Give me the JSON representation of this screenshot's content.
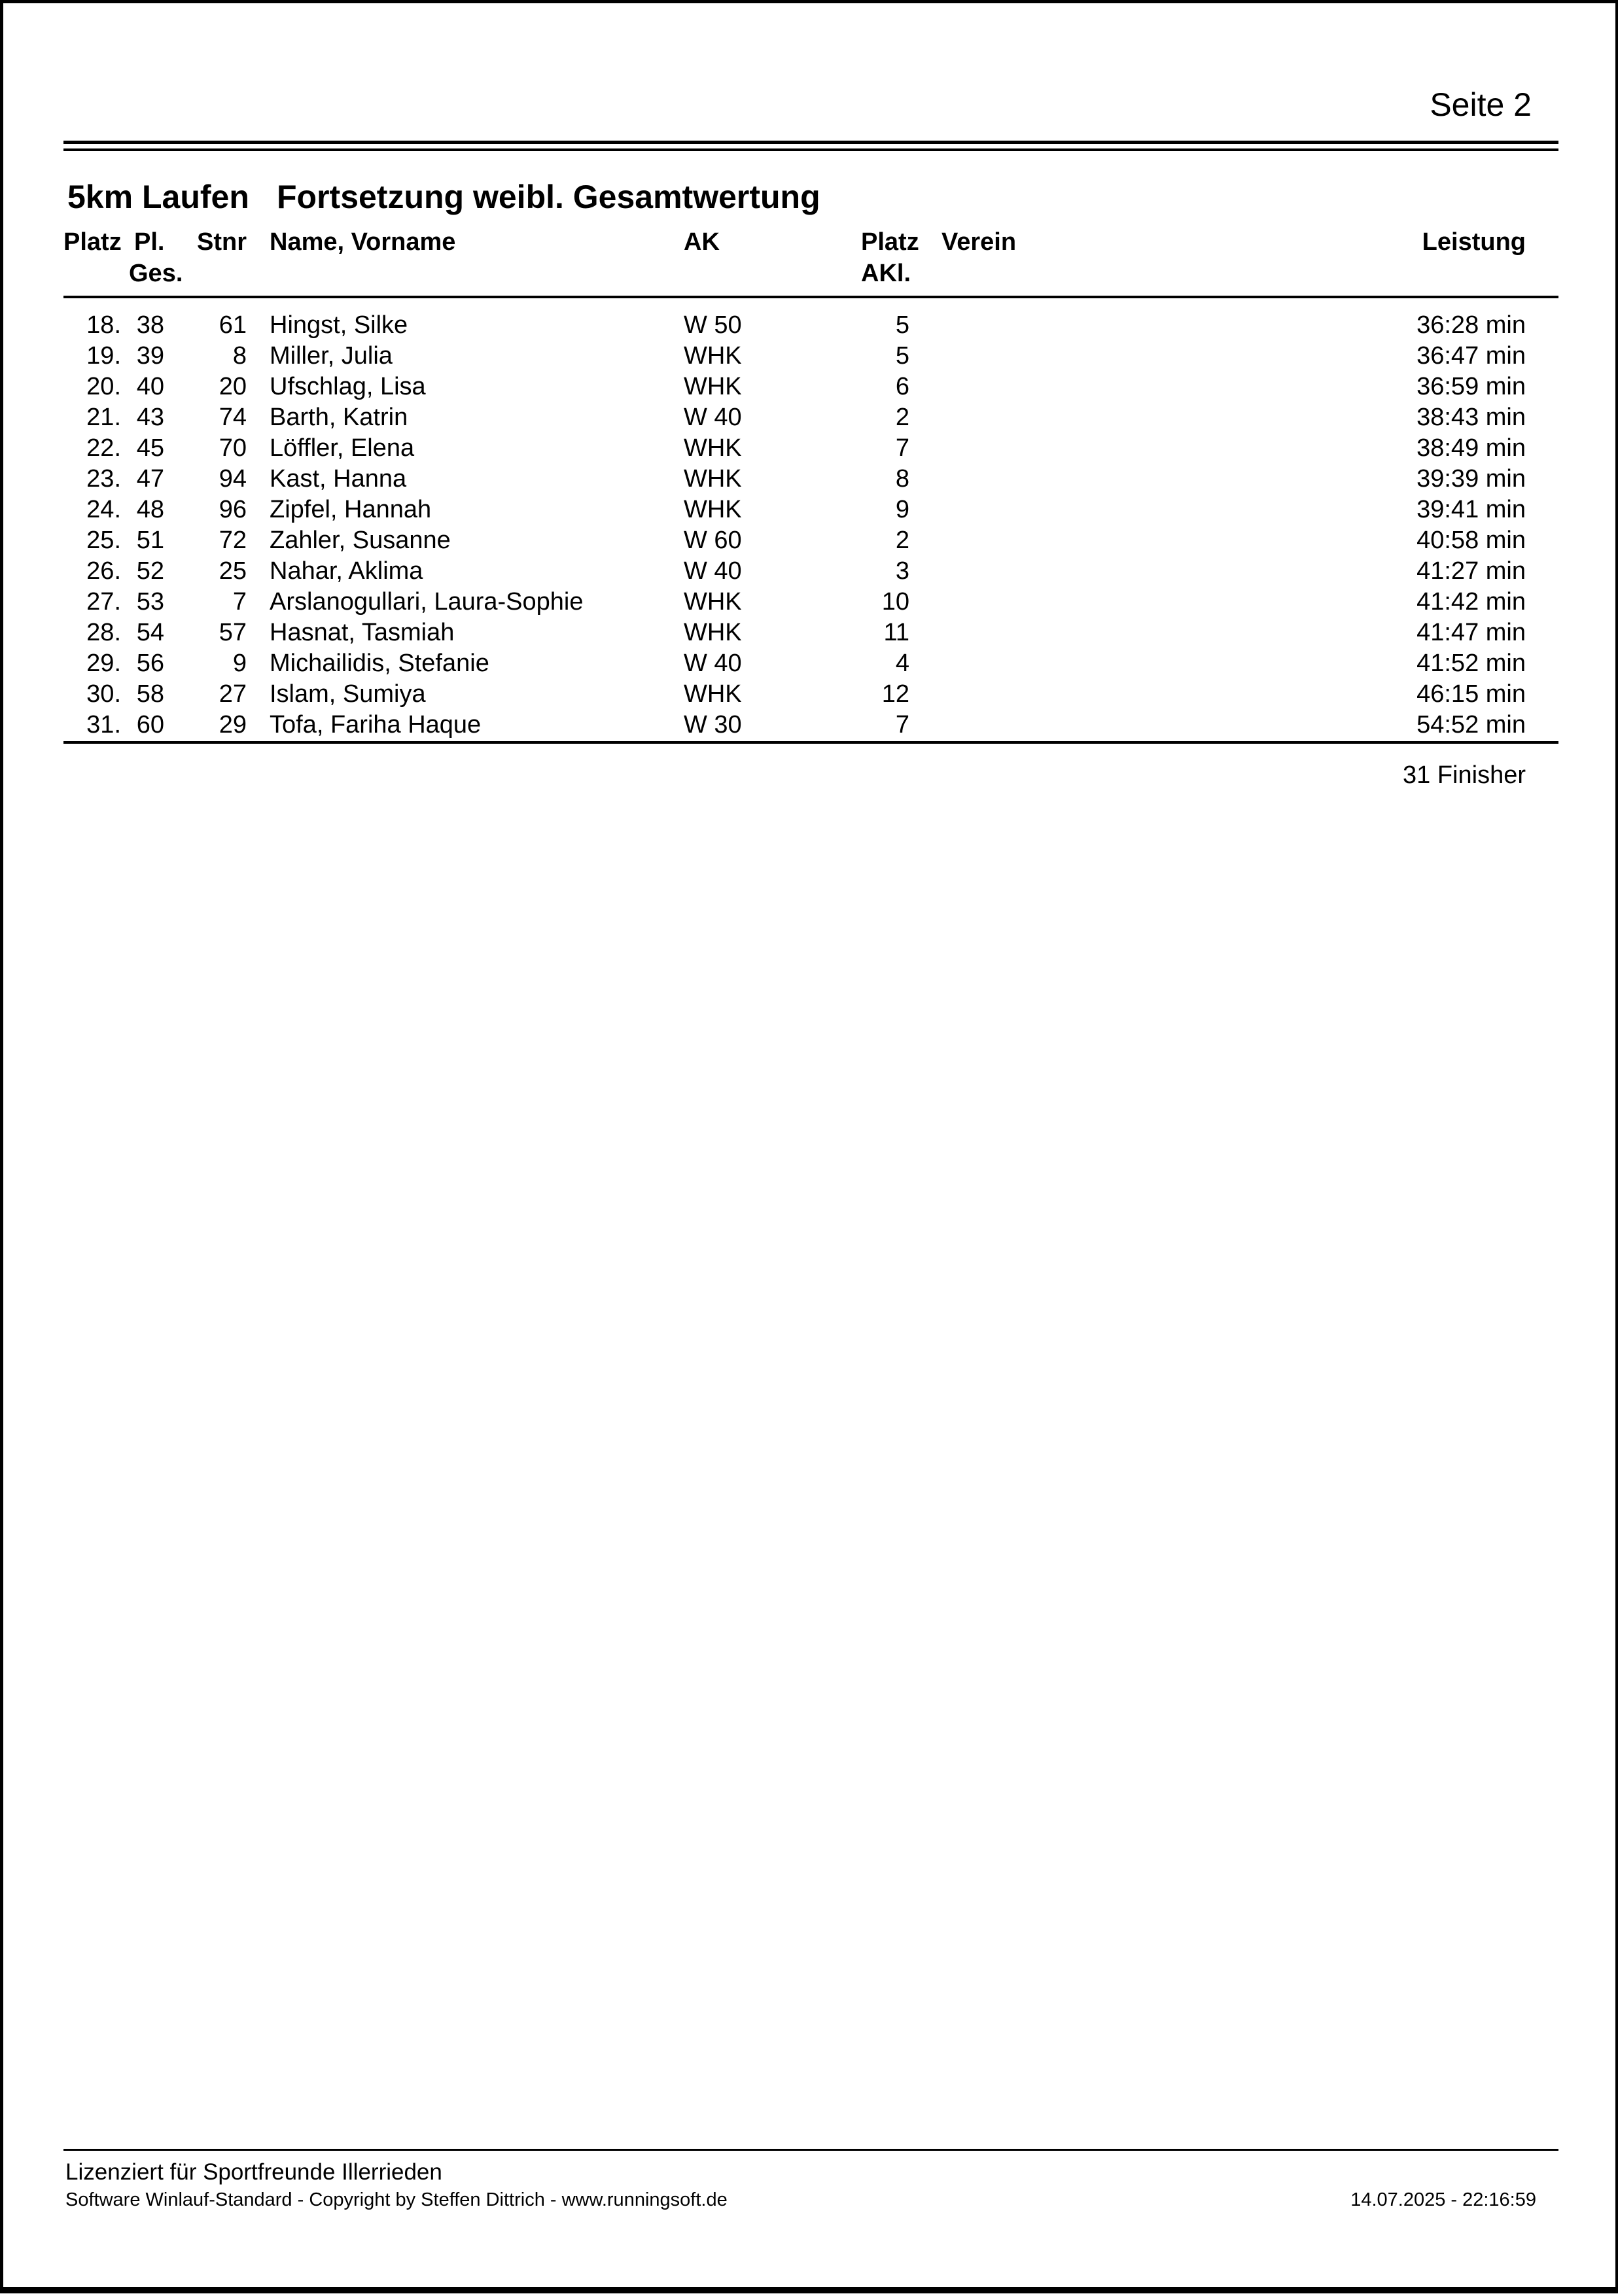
{
  "page": {
    "number_label": "Seite 2",
    "colors": {
      "ink": "#000000",
      "paper": "#ffffff"
    }
  },
  "report": {
    "event": "5km Laufen",
    "title": "Fortsetzung weibl. Gesamtwertung",
    "columns": {
      "platz": "Platz",
      "pl_ges_line1": "Pl.",
      "pl_ges_line2": "Ges.",
      "stnr": "Stnr",
      "name": "Name, Vorname",
      "ak": "AK",
      "platz_akl_line1": "Platz",
      "platz_akl_line2": "AKl.",
      "verein": "Verein",
      "leistung": "Leistung"
    },
    "rows": [
      {
        "platz": "18.",
        "pl_ges": "38",
        "stnr": "61",
        "name": "Hingst, Silke",
        "ak": "W 50",
        "platz_akl": "5",
        "verein": "",
        "leistung": "36:28 min"
      },
      {
        "platz": "19.",
        "pl_ges": "39",
        "stnr": "8",
        "name": "Miller, Julia",
        "ak": "WHK",
        "platz_akl": "5",
        "verein": "",
        "leistung": "36:47 min"
      },
      {
        "platz": "20.",
        "pl_ges": "40",
        "stnr": "20",
        "name": "Ufschlag, Lisa",
        "ak": "WHK",
        "platz_akl": "6",
        "verein": "",
        "leistung": "36:59 min"
      },
      {
        "platz": "21.",
        "pl_ges": "43",
        "stnr": "74",
        "name": "Barth, Katrin",
        "ak": "W 40",
        "platz_akl": "2",
        "verein": "",
        "leistung": "38:43 min"
      },
      {
        "platz": "22.",
        "pl_ges": "45",
        "stnr": "70",
        "name": "Löffler, Elena",
        "ak": "WHK",
        "platz_akl": "7",
        "verein": "",
        "leistung": "38:49 min"
      },
      {
        "platz": "23.",
        "pl_ges": "47",
        "stnr": "94",
        "name": "Kast, Hanna",
        "ak": "WHK",
        "platz_akl": "8",
        "verein": "",
        "leistung": "39:39 min"
      },
      {
        "platz": "24.",
        "pl_ges": "48",
        "stnr": "96",
        "name": "Zipfel, Hannah",
        "ak": "WHK",
        "platz_akl": "9",
        "verein": "",
        "leistung": "39:41 min"
      },
      {
        "platz": "25.",
        "pl_ges": "51",
        "stnr": "72",
        "name": "Zahler, Susanne",
        "ak": "W 60",
        "platz_akl": "2",
        "verein": "",
        "leistung": "40:58 min"
      },
      {
        "platz": "26.",
        "pl_ges": "52",
        "stnr": "25",
        "name": "Nahar, Aklima",
        "ak": "W 40",
        "platz_akl": "3",
        "verein": "",
        "leistung": "41:27 min"
      },
      {
        "platz": "27.",
        "pl_ges": "53",
        "stnr": "7",
        "name": "Arslanogullari, Laura-Sophie",
        "ak": "WHK",
        "platz_akl": "10",
        "verein": "",
        "leistung": "41:42 min"
      },
      {
        "platz": "28.",
        "pl_ges": "54",
        "stnr": "57",
        "name": "Hasnat, Tasmiah",
        "ak": "WHK",
        "platz_akl": "11",
        "verein": "",
        "leistung": "41:47 min"
      },
      {
        "platz": "29.",
        "pl_ges": "56",
        "stnr": "9",
        "name": "Michailidis, Stefanie",
        "ak": "W 40",
        "platz_akl": "4",
        "verein": "",
        "leistung": "41:52 min"
      },
      {
        "platz": "30.",
        "pl_ges": "58",
        "stnr": "27",
        "name": "Islam, Sumiya",
        "ak": "WHK",
        "platz_akl": "12",
        "verein": "",
        "leistung": "46:15 min"
      },
      {
        "platz": "31.",
        "pl_ges": "60",
        "stnr": "29",
        "name": "Tofa, Fariha Haque",
        "ak": "W 30",
        "platz_akl": "7",
        "verein": "",
        "leistung": "54:52 min"
      }
    ],
    "finisher_summary": "31 Finisher"
  },
  "footer": {
    "license": "Lizenziert für Sportfreunde Illerrieden",
    "software": "Software Winlauf-Standard - Copyright by Steffen Dittrich - www.runningsoft.de",
    "datetime": "14.07.2025 - 22:16:59"
  }
}
